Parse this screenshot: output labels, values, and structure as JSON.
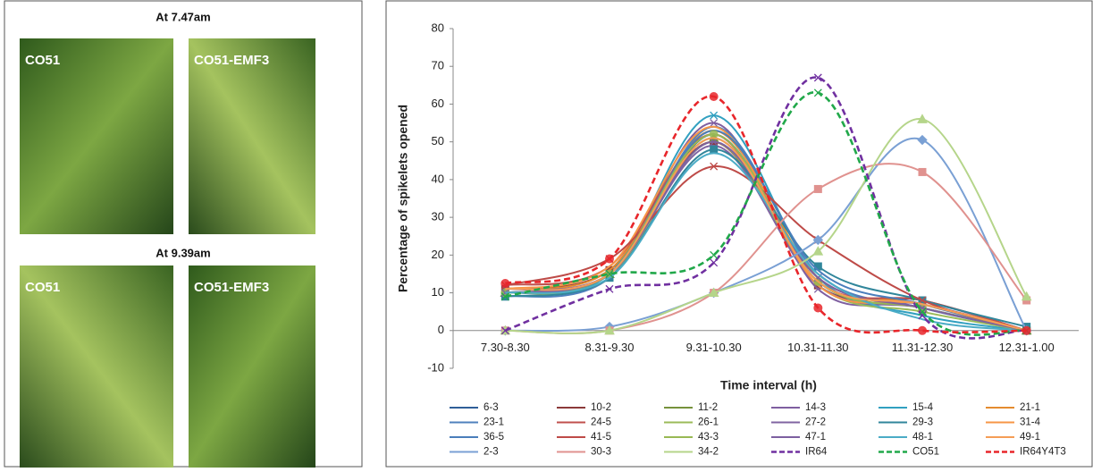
{
  "photo_panel": {
    "top_heading": "At 7.47am",
    "bottom_heading": "At 9.39am",
    "labels": [
      "CO51",
      "CO51-EMF3",
      "CO51",
      "CO51-EMF3"
    ]
  },
  "chart_data": {
    "type": "line",
    "x_label": "Time interval (h)",
    "y_label": "Percentage of spikelets opened",
    "categories": [
      "7.30-8.30",
      "8.31-9.30",
      "9.31-10.30",
      "10.31-11.30",
      "11.31-12.30",
      "12.31-1.00"
    ],
    "ylim": [
      -10,
      80
    ],
    "yticks": [
      -10,
      0,
      10,
      20,
      30,
      40,
      50,
      60,
      70,
      80
    ],
    "series": [
      {
        "name": "6-3",
        "color": "#2f5f98",
        "values": [
          10,
          14,
          52,
          13,
          6,
          0
        ]
      },
      {
        "name": "10-2",
        "color": "#8b3a3a",
        "marker": "square",
        "values": [
          11,
          16,
          50,
          12,
          8,
          0
        ]
      },
      {
        "name": "11-2",
        "color": "#76923c",
        "marker": "triangle",
        "values": [
          10,
          15,
          51,
          13,
          6,
          0
        ]
      },
      {
        "name": "14-3",
        "color": "#7f5fa0",
        "marker": "x",
        "values": [
          11,
          15,
          55,
          11,
          7,
          0
        ]
      },
      {
        "name": "15-4",
        "color": "#31a0c0",
        "marker": "x",
        "values": [
          10,
          15,
          57,
          14,
          4,
          0
        ]
      },
      {
        "name": "21-1",
        "color": "#e48b2f",
        "values": [
          11,
          16,
          53,
          14,
          7,
          0
        ]
      },
      {
        "name": "23-1",
        "color": "#4f81bd",
        "values": [
          9,
          14,
          54,
          15,
          6,
          0
        ]
      },
      {
        "name": "24-5",
        "color": "#c0504d",
        "values": [
          12,
          17,
          52,
          13,
          8,
          0
        ]
      },
      {
        "name": "26-1",
        "color": "#9bbb59",
        "values": [
          10,
          14,
          50,
          12,
          5,
          0
        ]
      },
      {
        "name": "27-2",
        "color": "#8064a2",
        "values": [
          11,
          15,
          49,
          12,
          6,
          0
        ]
      },
      {
        "name": "29-3",
        "color": "#31869b",
        "marker": "square",
        "values": [
          9,
          14,
          48,
          17,
          8,
          1
        ]
      },
      {
        "name": "31-4",
        "color": "#f79646",
        "values": [
          11,
          17,
          54,
          12,
          7,
          0
        ]
      },
      {
        "name": "36-5",
        "color": "#4a7ebb",
        "values": [
          10,
          15,
          53,
          16,
          7,
          0
        ]
      },
      {
        "name": "41-5",
        "color": "#be4b48",
        "marker": "x",
        "values": [
          12,
          19,
          43.5,
          24,
          8,
          0
        ]
      },
      {
        "name": "43-3",
        "color": "#98b954",
        "marker": "circle",
        "values": [
          10,
          15,
          52,
          13,
          6,
          0
        ]
      },
      {
        "name": "47-1",
        "color": "#7d60a0",
        "marker": "x",
        "values": [
          10,
          15,
          50,
          14,
          6,
          0
        ]
      },
      {
        "name": "48-1",
        "color": "#4bacc6",
        "values": [
          10,
          14,
          47,
          15,
          3,
          0
        ]
      },
      {
        "name": "49-1",
        "color": "#f59d56",
        "values": [
          11,
          15,
          51,
          13,
          7,
          0
        ]
      },
      {
        "name": "2-3",
        "color": "#7aa0d4",
        "marker": "diamond",
        "values": [
          0,
          1,
          10,
          24,
          50.5,
          0
        ]
      },
      {
        "name": "30-3",
        "color": "#e0928f",
        "marker": "square",
        "values": [
          0,
          0,
          10,
          37.5,
          42,
          8
        ]
      },
      {
        "name": "34-2",
        "color": "#b5d58a",
        "marker": "triangle",
        "values": [
          0,
          0,
          10,
          21,
          56,
          9
        ]
      },
      {
        "name": "IR64",
        "color": "#7030a0",
        "dash": true,
        "marker": "x",
        "values": [
          0,
          11,
          18,
          67,
          4,
          0
        ]
      },
      {
        "name": "CO51",
        "color": "#21a84a",
        "dash": true,
        "marker": "x",
        "values": [
          9,
          15,
          20,
          63,
          5,
          0
        ]
      },
      {
        "name": "IR64Y4T3",
        "color": "#e8262b",
        "dash": true,
        "marker": "circle",
        "values": [
          12.5,
          19,
          62,
          6,
          0,
          0
        ]
      }
    ]
  }
}
